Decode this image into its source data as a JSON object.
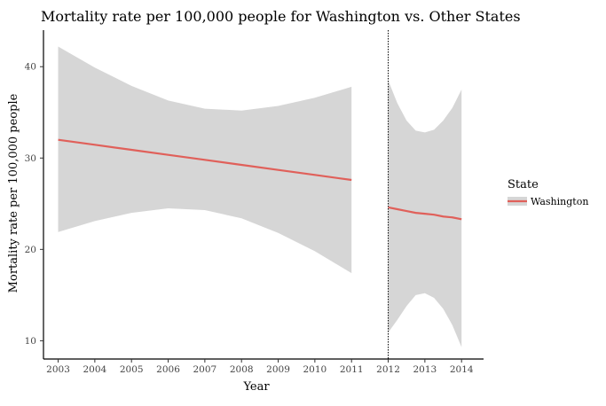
{
  "chart_data": {
    "type": "line",
    "title": "Mortality rate per 100,000 people for Washington vs. Other States",
    "xlabel": "Year",
    "ylabel": "Mortality rate per 100,000 people",
    "xlim": [
      2002.6,
      2014.6
    ],
    "ylim": [
      8,
      44
    ],
    "x_ticks": [
      2003,
      2004,
      2005,
      2006,
      2007,
      2008,
      2009,
      2010,
      2011,
      2012,
      2013,
      2014
    ],
    "y_ticks": [
      10,
      20,
      30,
      40
    ],
    "grid": false,
    "legend": {
      "title": "State",
      "position": "right",
      "entries": [
        "Washington"
      ]
    },
    "vline": {
      "x": 2012,
      "style": "dotted"
    },
    "colors": {
      "line": "#e0605a",
      "ribbon": "#d6d6d6",
      "axis": "#000000",
      "tick_text": "#444444"
    },
    "series": [
      {
        "name": "Washington",
        "segment": "pre",
        "x": [
          2003,
          2004,
          2005,
          2006,
          2007,
          2008,
          2009,
          2010,
          2011
        ],
        "fit": [
          32.0,
          31.45,
          30.9,
          30.35,
          29.8,
          29.25,
          28.7,
          28.15,
          27.6
        ],
        "ci_lower": [
          21.9,
          23.1,
          24.0,
          24.5,
          24.3,
          23.4,
          21.8,
          19.8,
          17.4
        ],
        "ci_upper": [
          42.2,
          39.9,
          37.9,
          36.3,
          35.4,
          35.2,
          35.7,
          36.6,
          37.8
        ]
      },
      {
        "name": "Washington",
        "segment": "post",
        "x": [
          2012,
          2012.25,
          2012.5,
          2012.75,
          2013,
          2013.25,
          2013.5,
          2013.75,
          2014
        ],
        "fit": [
          24.6,
          24.4,
          24.2,
          24.0,
          23.9,
          23.8,
          23.6,
          23.5,
          23.3
        ],
        "ci_lower": [
          10.9,
          12.3,
          13.8,
          15.0,
          15.2,
          14.7,
          13.5,
          11.7,
          9.3
        ],
        "ci_upper": [
          38.5,
          36.0,
          34.1,
          33.0,
          32.8,
          33.1,
          34.1,
          35.5,
          37.5
        ]
      }
    ]
  }
}
